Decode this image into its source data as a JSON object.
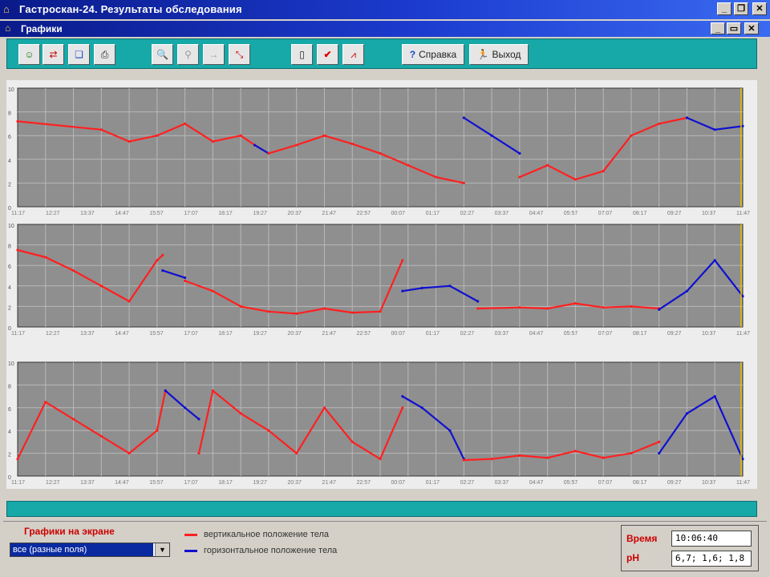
{
  "window": {
    "title": "Гастроскан-24. Результаты обследования",
    "subtitle": "Графики"
  },
  "toolbar": {
    "help_label": "Справка",
    "exit_label": "Выход",
    "icons": [
      "patient-icon",
      "export-icon",
      "copy-icon",
      "print-icon",
      "zoom-in-icon",
      "zoom-out-icon",
      "scroll-icon",
      "zoom-area-icon",
      "doc-icon",
      "check-icon",
      "graph-icon"
    ]
  },
  "colors": {
    "vertical": "#ff2020",
    "horizontal": "#1010d0",
    "grid": "#b8b8b8",
    "plot_bg": "#8f8f8f",
    "accent": "#17a8a8"
  },
  "chart_data": [
    {
      "type": "line",
      "ylim": [
        0,
        10
      ],
      "yticks": [
        "10",
        "8",
        "6",
        "4",
        "2",
        "0"
      ],
      "x_labels": [
        "11:17",
        "12:27",
        "13:37",
        "14:47",
        "15:57",
        "17:07",
        "18:17",
        "19:27",
        "20:37",
        "21:47",
        "22:57",
        "00:07",
        "01:17",
        "02:27",
        "03:37",
        "04:47",
        "05:57",
        "07:07",
        "08:17",
        "09:27",
        "10:37",
        "11:47"
      ],
      "series": [
        {
          "position": "vertical",
          "x": [
            0,
            3,
            4,
            5,
            6,
            7,
            8,
            8.5
          ],
          "y": [
            7.2,
            6.5,
            5.5,
            6,
            7,
            5.5,
            6,
            5.2
          ]
        },
        {
          "position": "horizontal",
          "x": [
            8.5,
            9
          ],
          "y": [
            5.2,
            4.5
          ]
        },
        {
          "position": "vertical",
          "x": [
            9,
            10,
            11,
            12,
            13,
            14,
            15,
            16
          ],
          "y": [
            4.5,
            5.2,
            6,
            5.3,
            4.5,
            3.5,
            2.5,
            2.0
          ]
        },
        {
          "position": "horizontal",
          "x": [
            16,
            17,
            18
          ],
          "y": [
            7.5,
            6,
            4.5
          ]
        },
        {
          "position": "vertical",
          "x": [
            18,
            19,
            20,
            21,
            22,
            23,
            24
          ],
          "y": [
            2.5,
            3.5,
            2.3,
            3,
            6,
            7,
            7.5
          ]
        },
        {
          "position": "horizontal",
          "x": [
            24,
            25,
            26
          ],
          "y": [
            7.5,
            6.5,
            6.8
          ]
        }
      ]
    },
    {
      "type": "line",
      "ylim": [
        0,
        10
      ],
      "yticks": [
        "10",
        "8",
        "6",
        "4",
        "2",
        "0"
      ],
      "x_labels": [
        "11:17",
        "12:27",
        "13:37",
        "14:47",
        "15:57",
        "17:07",
        "18:17",
        "19:27",
        "20:37",
        "21:47",
        "22:57",
        "00:07",
        "01:17",
        "02:27",
        "03:37",
        "04:47",
        "05:57",
        "07:07",
        "08:17",
        "09:27",
        "10:37",
        "11:47"
      ],
      "series": [
        {
          "position": "vertical",
          "x": [
            0,
            1,
            2,
            3,
            4,
            5,
            5.2
          ],
          "y": [
            7.5,
            6.8,
            5.5,
            4,
            2.5,
            6.5,
            7
          ]
        },
        {
          "position": "horizontal",
          "x": [
            5.2,
            6
          ],
          "y": [
            5.5,
            4.8
          ]
        },
        {
          "position": "vertical",
          "x": [
            6,
            7,
            8,
            9,
            10,
            11,
            12,
            13,
            13.8
          ],
          "y": [
            4.5,
            3.5,
            2,
            1.5,
            1.3,
            1.8,
            1.4,
            1.5,
            6.5
          ]
        },
        {
          "position": "horizontal",
          "x": [
            13.8,
            14.5,
            15.5,
            16.5
          ],
          "y": [
            3.5,
            3.8,
            4,
            2.5
          ]
        },
        {
          "position": "vertical",
          "x": [
            16.5,
            18,
            19,
            20,
            21,
            22,
            23
          ],
          "y": [
            1.8,
            1.9,
            1.8,
            2.3,
            1.9,
            2,
            1.8
          ]
        },
        {
          "position": "horizontal",
          "x": [
            23,
            24,
            25,
            26
          ],
          "y": [
            1.7,
            3.5,
            6.5,
            3
          ]
        }
      ]
    },
    {
      "type": "line",
      "ylim": [
        0,
        10
      ],
      "yticks": [
        "10",
        "8",
        "6",
        "4",
        "2",
        "0"
      ],
      "x_labels": [
        "11:17",
        "12:27",
        "13:37",
        "14:47",
        "15:57",
        "17:07",
        "18:17",
        "19:27",
        "20:37",
        "21:47",
        "22:57",
        "00:07",
        "01:17",
        "02:27",
        "03:37",
        "04:47",
        "05:57",
        "07:07",
        "08:17",
        "09:27",
        "10:37",
        "11:47"
      ],
      "series": [
        {
          "position": "vertical",
          "x": [
            0,
            1,
            2,
            3,
            4,
            5,
            5.3
          ],
          "y": [
            1.5,
            6.5,
            5,
            3.5,
            2,
            4,
            7.5
          ]
        },
        {
          "position": "horizontal",
          "x": [
            5.3,
            6,
            6.5
          ],
          "y": [
            7.5,
            6,
            5
          ]
        },
        {
          "position": "vertical",
          "x": [
            6.5,
            7,
            8,
            9,
            10,
            11,
            12,
            13,
            13.8
          ],
          "y": [
            2,
            7.5,
            5.5,
            4,
            2,
            6,
            3,
            1.5,
            6
          ]
        },
        {
          "position": "horizontal",
          "x": [
            13.8,
            14.5,
            15.5,
            16
          ],
          "y": [
            7,
            6,
            4,
            1.5
          ]
        },
        {
          "position": "vertical",
          "x": [
            16,
            17,
            18,
            19,
            20,
            21,
            22,
            23
          ],
          "y": [
            1.4,
            1.5,
            1.8,
            1.6,
            2.2,
            1.6,
            2,
            3
          ]
        },
        {
          "position": "horizontal",
          "x": [
            23,
            24,
            25,
            26
          ],
          "y": [
            2,
            5.5,
            7,
            1.5
          ]
        }
      ]
    }
  ],
  "legend_panel": {
    "label": "Графики на экране",
    "select_value": "все (разные поля)",
    "vertical_label": "вертикальное положение тела",
    "horizontal_label": "горизонтальное положение тела"
  },
  "info": {
    "time_label": "Время",
    "time_value": "10:06:40",
    "ph_label": "pH",
    "ph_value": "6,7; 1,6; 1,8"
  }
}
